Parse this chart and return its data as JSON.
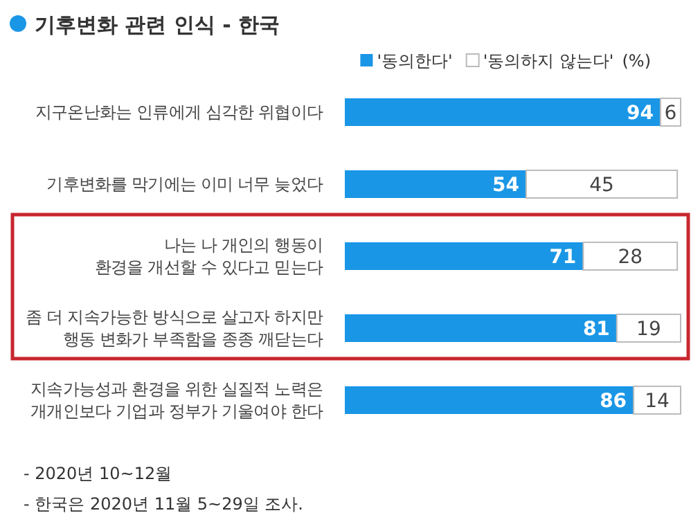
{
  "chart_data": {
    "type": "bar",
    "orientation": "horizontal",
    "stacked": true,
    "title": "기후변화 관련 인식 - 한국",
    "categories": [
      "지구온난화는 인류에게 심각한 위협이다",
      "기후변화를 막기에는 이미 너무 늦었다",
      "나는 나 개인의 행동이\n환경을 개선할 수 있다고 믿는다",
      "좀 더 지속가능한 방식으로 살고자 하지만\n행동 변화가 부족함을 종종 깨닫는다",
      "지속가능성과 환경을 위한 실질적 노력은\n개개인보다 기업과 정부가 기울여야 한다"
    ],
    "series": [
      {
        "name": "'동의한다'",
        "color": "#1a96e6",
        "values": [
          94,
          54,
          71,
          81,
          86
        ]
      },
      {
        "name": "'동의하지 않는다'",
        "color": "#ffffff",
        "values": [
          6,
          45,
          28,
          19,
          14
        ]
      }
    ],
    "xlim": [
      0,
      100
    ],
    "tick_labels": "y",
    "data_labels": true,
    "legend": "top",
    "annotations": [
      "(%)",
      "- 2020년 10~12월",
      "- 한국은 2020년 11월 5~29일 조사."
    ]
  }
}
